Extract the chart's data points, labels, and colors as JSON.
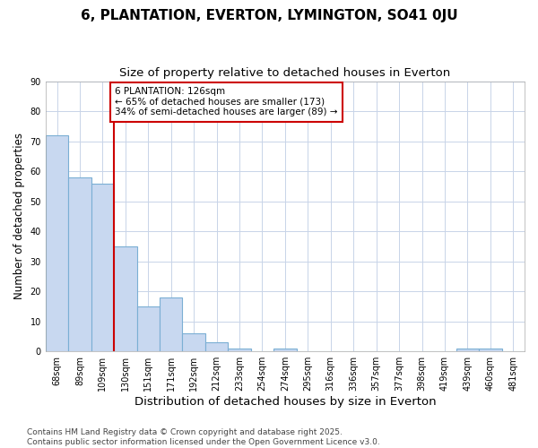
{
  "title": "6, PLANTATION, EVERTON, LYMINGTON, SO41 0JU",
  "subtitle": "Size of property relative to detached houses in Everton",
  "xlabel": "Distribution of detached houses by size in Everton",
  "ylabel": "Number of detached properties",
  "bin_labels": [
    "68sqm",
    "89sqm",
    "109sqm",
    "130sqm",
    "151sqm",
    "171sqm",
    "192sqm",
    "212sqm",
    "233sqm",
    "254sqm",
    "274sqm",
    "295sqm",
    "316sqm",
    "336sqm",
    "357sqm",
    "377sqm",
    "398sqm",
    "419sqm",
    "439sqm",
    "460sqm",
    "481sqm"
  ],
  "bar_values": [
    72,
    58,
    56,
    35,
    15,
    18,
    6,
    3,
    1,
    0,
    1,
    0,
    0,
    0,
    0,
    0,
    0,
    0,
    1,
    1,
    0
  ],
  "bar_color": "#c8d8f0",
  "bar_edge_color": "#7bafd4",
  "bar_width": 1.0,
  "property_line_index": 3,
  "property_line_color": "#cc0000",
  "annotation_text": "6 PLANTATION: 126sqm\n← 65% of detached houses are smaller (173)\n34% of semi-detached houses are larger (89) →",
  "annotation_box_facecolor": "#ffffff",
  "annotation_box_edgecolor": "#cc0000",
  "ylim": [
    0,
    90
  ],
  "yticks": [
    0,
    10,
    20,
    30,
    40,
    50,
    60,
    70,
    80,
    90
  ],
  "grid_color": "#c8d4e8",
  "plot_bg_color": "#ffffff",
  "fig_bg_color": "#ffffff",
  "footer_text": "Contains HM Land Registry data © Crown copyright and database right 2025.\nContains public sector information licensed under the Open Government Licence v3.0.",
  "title_fontsize": 11,
  "subtitle_fontsize": 9.5,
  "xlabel_fontsize": 9.5,
  "ylabel_fontsize": 8.5,
  "tick_fontsize": 7,
  "annotation_fontsize": 7.5,
  "footer_fontsize": 6.5
}
